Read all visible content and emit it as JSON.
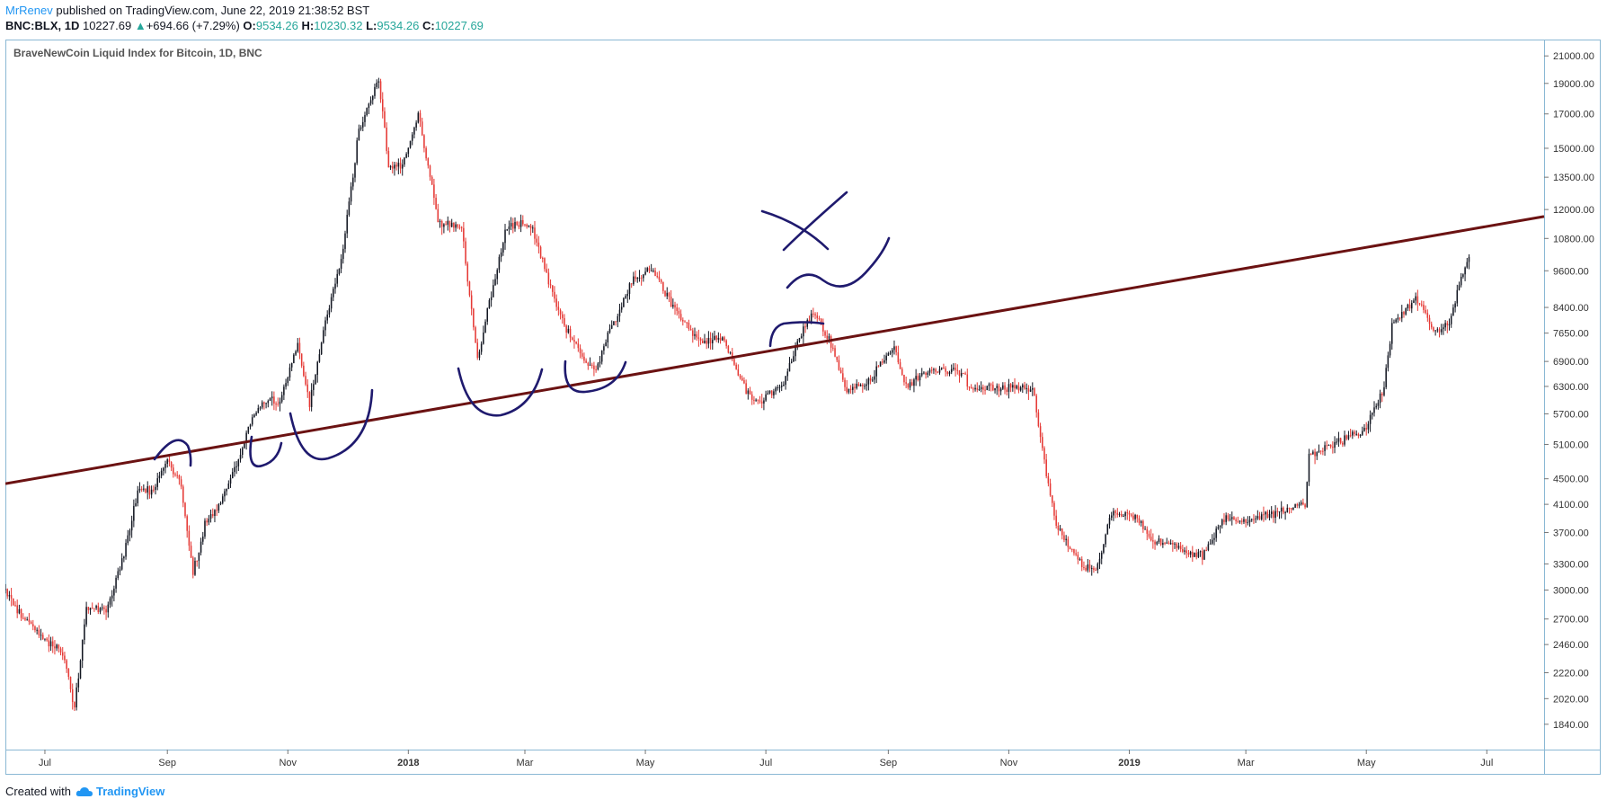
{
  "header": {
    "author": "MrRenev",
    "published": "published on TradingView.com, June 22, 2019 21:38:52 BST",
    "symbol": "BNC:BLX, 1D",
    "last": "10227.69",
    "change": "+694.66 (+7.29%)",
    "o_label": "O:",
    "o": "9534.26",
    "h_label": "H:",
    "h": "10230.32",
    "l_label": "L:",
    "l": "9534.26",
    "c_label": "C:",
    "c": "10227.69"
  },
  "footer": {
    "created_with": "Created with",
    "brand": "TradingView"
  },
  "colors": {
    "up": "#131722",
    "down": "#e53935",
    "trendline": "#6b1212",
    "drawing": "#1f1a6e",
    "frame": "#8ab8d4",
    "accent": "#2196f3",
    "green": "#26a69a"
  },
  "chart_data": {
    "type": "candlestick",
    "title": "BraveNewCoin Liquid Index for Bitcoin, 1D, BNC",
    "y_ticks": [
      "21000.00",
      "19000.00",
      "17000.00",
      "15000.00",
      "13500.00",
      "12000.00",
      "10800.00",
      "9600.00",
      "8400.00",
      "7650.00",
      "6900.00",
      "6300.00",
      "5700.00",
      "5100.00",
      "4500.00",
      "4100.00",
      "3700.00",
      "3300.00",
      "3000.00",
      "2700.00",
      "2460.00",
      "2220.00",
      "2020.00",
      "1840.00"
    ],
    "y_scale": "log",
    "x_ticks": [
      {
        "date": "2017-07-01",
        "label": "Jul"
      },
      {
        "date": "2017-09-01",
        "label": "Sep"
      },
      {
        "date": "2017-11-01",
        "label": "Nov"
      },
      {
        "date": "2018-01-01",
        "label": "2018"
      },
      {
        "date": "2018-03-01",
        "label": "Mar"
      },
      {
        "date": "2018-05-01",
        "label": "May"
      },
      {
        "date": "2018-07-01",
        "label": "Jul"
      },
      {
        "date": "2018-09-01",
        "label": "Sep"
      },
      {
        "date": "2018-11-01",
        "label": "Nov"
      },
      {
        "date": "2019-01-01",
        "label": "2019"
      },
      {
        "date": "2019-03-01",
        "label": "Mar"
      },
      {
        "date": "2019-05-01",
        "label": "May"
      },
      {
        "date": "2019-07-01",
        "label": "Jul"
      }
    ],
    "x_range": [
      "2017-06-11",
      "2019-07-30"
    ],
    "y_range": [
      1700,
      22000
    ],
    "series_path": [
      [
        "2017-06-11",
        3000
      ],
      [
        "2017-06-20",
        2700
      ],
      [
        "2017-07-01",
        2500
      ],
      [
        "2017-07-10",
        2400
      ],
      [
        "2017-07-16",
        1950
      ],
      [
        "2017-07-22",
        2800
      ],
      [
        "2017-08-01",
        2800
      ],
      [
        "2017-08-10",
        3400
      ],
      [
        "2017-08-17",
        4300
      ],
      [
        "2017-08-25",
        4300
      ],
      [
        "2017-09-01",
        4800
      ],
      [
        "2017-09-08",
        4400
      ],
      [
        "2017-09-14",
        3200
      ],
      [
        "2017-09-20",
        3800
      ],
      [
        "2017-10-01",
        4300
      ],
      [
        "2017-10-12",
        5400
      ],
      [
        "2017-10-20",
        6000
      ],
      [
        "2017-10-28",
        6000
      ],
      [
        "2017-11-06",
        7300
      ],
      [
        "2017-11-12",
        5900
      ],
      [
        "2017-11-20",
        8000
      ],
      [
        "2017-11-28",
        9900
      ],
      [
        "2017-12-07",
        16000
      ],
      [
        "2017-12-17",
        19400
      ],
      [
        "2017-12-22",
        14000
      ],
      [
        "2017-12-29",
        14000
      ],
      [
        "2018-01-06",
        17000
      ],
      [
        "2018-01-16",
        11500
      ],
      [
        "2018-01-28",
        11200
      ],
      [
        "2018-02-05",
        6900
      ],
      [
        "2018-02-10",
        8300
      ],
      [
        "2018-02-20",
        11300
      ],
      [
        "2018-03-04",
        11400
      ],
      [
        "2018-03-18",
        8200
      ],
      [
        "2018-03-30",
        7000
      ],
      [
        "2018-04-06",
        6700
      ],
      [
        "2018-04-12",
        7600
      ],
      [
        "2018-04-25",
        9300
      ],
      [
        "2018-05-05",
        9700
      ],
      [
        "2018-05-15",
        8400
      ],
      [
        "2018-05-29",
        7400
      ],
      [
        "2018-06-10",
        7500
      ],
      [
        "2018-06-22",
        6100
      ],
      [
        "2018-06-29",
        6000
      ],
      [
        "2018-07-10",
        6400
      ],
      [
        "2018-07-17",
        7400
      ],
      [
        "2018-07-25",
        8300
      ],
      [
        "2018-08-02",
        7500
      ],
      [
        "2018-08-11",
        6200
      ],
      [
        "2018-08-22",
        6400
      ],
      [
        "2018-09-04",
        7300
      ],
      [
        "2018-09-10",
        6300
      ],
      [
        "2018-09-22",
        6700
      ],
      [
        "2018-10-10",
        6600
      ],
      [
        "2018-10-11",
        6250
      ],
      [
        "2018-11-13",
        6300
      ],
      [
        "2018-11-20",
        4600
      ],
      [
        "2018-11-25",
        3800
      ],
      [
        "2018-12-08",
        3300
      ],
      [
        "2018-12-15",
        3200
      ],
      [
        "2018-12-23",
        4000
      ],
      [
        "2019-01-05",
        3900
      ],
      [
        "2019-01-13",
        3600
      ],
      [
        "2019-02-01",
        3450
      ],
      [
        "2019-02-07",
        3400
      ],
      [
        "2019-02-18",
        3900
      ],
      [
        "2019-03-01",
        3850
      ],
      [
        "2019-03-20",
        4000
      ],
      [
        "2019-03-31",
        4100
      ],
      [
        "2019-04-02",
        4900
      ],
      [
        "2019-04-15",
        5100
      ],
      [
        "2019-05-01",
        5400
      ],
      [
        "2019-05-10",
        6300
      ],
      [
        "2019-05-14",
        7900
      ],
      [
        "2019-05-26",
        8700
      ],
      [
        "2019-06-05",
        7700
      ],
      [
        "2019-06-12",
        8000
      ],
      [
        "2019-06-18",
        9300
      ],
      [
        "2019-06-22",
        10227.69
      ]
    ],
    "trendline": {
      "from": [
        "2017-06-11",
        4420
      ],
      "to": [
        "2019-07-30",
        11700
      ]
    },
    "annotations": "hand-drawn arcs and an X marking touches of the trendline"
  }
}
